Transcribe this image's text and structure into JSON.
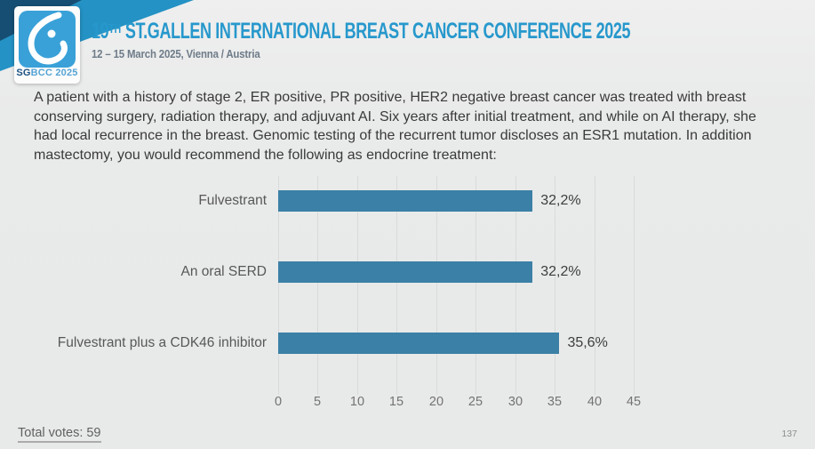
{
  "header": {
    "logo": {
      "icon": "sgbcc-breast-icon",
      "text_sg": "SG",
      "text_rest": "BCC 2025"
    },
    "title_num": "19",
    "title_sup": "TH",
    "title_rest": " ST.GALLEN INTERNATIONAL BREAST CANCER CONFERENCE 2025",
    "subtitle": "12 – 15 March 2025, Vienna / Austria",
    "accent_color": "#2798cc"
  },
  "question": "A patient with a history of stage 2, ER positive, PR positive, HER2 negative breast cancer was treated with breast conserving surgery, radiation therapy, and adjuvant AI.  Six years after initial treatment, and while on AI therapy, she had local recurrence in the breast. Genomic testing of the recurrent tumor discloses an ESR1 mutation.  In addition mastectomy, you would recommend the following as endocrine treatment:",
  "chart_data": {
    "type": "bar",
    "orientation": "horizontal",
    "categories": [
      "Fulvestrant",
      "An oral SERD",
      "Fulvestrant plus a CDK46 inhibitor"
    ],
    "values": [
      32.2,
      32.2,
      35.6
    ],
    "value_labels": [
      "32,2%",
      "32,2%",
      "35,6%"
    ],
    "xlim": [
      0,
      45
    ],
    "xticks": [
      "0",
      "5",
      "10",
      "15",
      "20",
      "25",
      "30",
      "35",
      "40",
      "45"
    ],
    "grid": "vertical-only",
    "bar_color": "#3b80a6",
    "title": "",
    "xlabel": "",
    "ylabel": ""
  },
  "footer": {
    "total_votes": "Total votes: 59",
    "page_number": "137"
  }
}
